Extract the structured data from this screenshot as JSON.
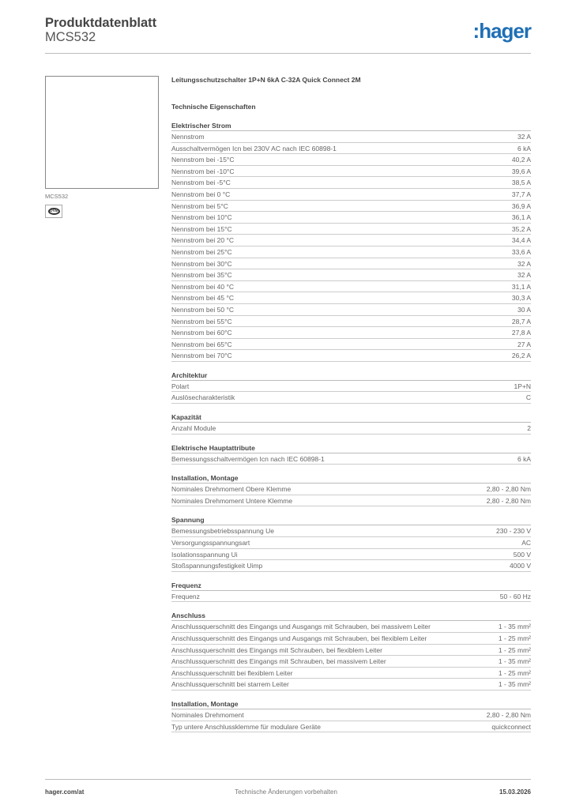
{
  "header": {
    "title": "Produktdatenblatt",
    "model": "MCS532",
    "logo": ":hager"
  },
  "side": {
    "ref": "MCS532",
    "cert": "ÖVE"
  },
  "product_title": "Leitungsschutzschalter 1P+N 6kA C-32A Quick Connect 2M",
  "subtitle": "Technische Eigenschaften",
  "sections": [
    {
      "title": "Elektrischer Strom",
      "rows": [
        [
          "Nennstrom",
          "32 A"
        ],
        [
          "Ausschaltvermögen Icn bei 230V AC nach IEC 60898-1",
          "6 kA"
        ],
        [
          "Nennstrom bei -15°C",
          "40,2 A"
        ],
        [
          "Nennstrom bei -10°C",
          "39,6 A"
        ],
        [
          "Nennstrom bei -5°C",
          "38,5 A"
        ],
        [
          "Nennstrom bei 0 °C",
          "37,7 A"
        ],
        [
          "Nennstrom bei 5°C",
          "36,9 A"
        ],
        [
          "Nennstrom bei 10°C",
          "36,1 A"
        ],
        [
          "Nennstrom bei 15°C",
          "35,2 A"
        ],
        [
          "Nennstrom bei 20 °C",
          "34,4 A"
        ],
        [
          "Nennstrom bei 25°C",
          "33,6 A"
        ],
        [
          "Nennstrom bei 30°C",
          "32 A"
        ],
        [
          "Nennstrom bei 35°C",
          "32 A"
        ],
        [
          "Nennstrom bei 40 °C",
          "31,1 A"
        ],
        [
          "Nennstrom bei 45 °C",
          "30,3 A"
        ],
        [
          "Nennstrom bei 50 °C",
          "30 A"
        ],
        [
          "Nennstrom bei 55°C",
          "28,7 A"
        ],
        [
          "Nennstrom bei 60°C",
          "27,8 A"
        ],
        [
          "Nennstrom bei 65°C",
          "27 A"
        ],
        [
          "Nennstrom bei 70°C",
          "26,2 A"
        ]
      ]
    },
    {
      "title": "Architektur",
      "rows": [
        [
          "Polart",
          "1P+N"
        ],
        [
          "Auslösecharakteristik",
          "C"
        ]
      ]
    },
    {
      "title": "Kapazität",
      "rows": [
        [
          "Anzahl Module",
          "2"
        ]
      ]
    },
    {
      "title": "Elektrische Hauptattribute",
      "rows": [
        [
          "Bemessungsschaltvermögen Icn nach IEC 60898-1",
          "6 kA"
        ]
      ]
    },
    {
      "title": "Installation, Montage",
      "rows": [
        [
          "Nominales Drehmoment Obere Klemme",
          "2,80 - 2,80 Nm"
        ],
        [
          "Nominales Drehmoment Untere Klemme",
          "2,80 - 2,80 Nm"
        ]
      ]
    },
    {
      "title": "Spannung",
      "rows": [
        [
          "Bemessungsbetriebsspannung Ue",
          "230 - 230 V"
        ],
        [
          "Versorgungsspannungsart",
          "AC"
        ],
        [
          "Isolationsspannung Ui",
          "500 V"
        ],
        [
          "Stoßspannungsfestigkeit Uimp",
          "4000 V"
        ]
      ]
    },
    {
      "title": "Frequenz",
      "rows": [
        [
          "Frequenz",
          "50 - 60 Hz"
        ]
      ]
    },
    {
      "title": "Anschluss",
      "rows": [
        [
          "Anschlussquerschnitt des Eingangs und Ausgangs mit Schrauben, bei massivem Leiter",
          "1 - 35 mm²"
        ],
        [
          "Anschlussquerschnitt des Eingangs und Ausgangs mit Schrauben, bei flexiblem Leiter",
          "1 - 25 mm²"
        ],
        [
          "Anschlussquerschnitt des Eingangs mit Schrauben, bei flexiblem Leiter",
          "1 - 25 mm²"
        ],
        [
          "Anschlussquerschnitt des Eingangs mit Schrauben, bei massivem Leiter",
          "1 - 35 mm²"
        ],
        [
          "Anschlussquerschnitt bei flexiblem Leiter",
          "1 - 25 mm²"
        ],
        [
          "Anschlussquerschnitt bei starrem Leiter",
          "1 - 35 mm²"
        ]
      ]
    },
    {
      "title": "Installation, Montage",
      "rows": [
        [
          "Nominales Drehmoment",
          "2,80 - 2,80 Nm"
        ],
        [
          "Typ untere Anschlussklemme für modulare Geräte",
          "quickconnect"
        ]
      ]
    }
  ],
  "footer": {
    "website": "hager.com/at",
    "note": "Technische Änderungen vorbehalten",
    "date": "15.03.2026"
  }
}
